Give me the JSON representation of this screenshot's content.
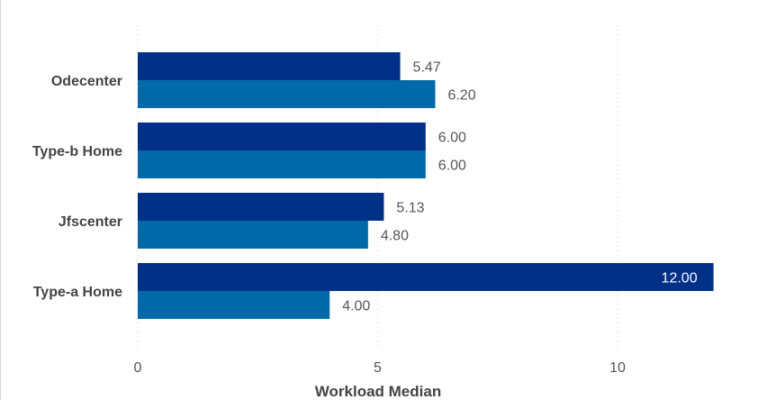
{
  "chart_data": {
    "type": "bar",
    "orientation": "horizontal",
    "categories": [
      "Odecenter",
      "Type-b Home",
      "Jfscenter",
      "Type-a Home"
    ],
    "series": [
      {
        "values": [
          5.47,
          6.0,
          5.13,
          12.0
        ],
        "color": "#003087"
      },
      {
        "values": [
          6.2,
          6.0,
          4.8,
          4.0
        ],
        "color": "#0069a8"
      }
    ],
    "value_labels": [
      [
        "5.47",
        "6.00",
        "5.13",
        "12.00"
      ],
      [
        "6.20",
        "6.00",
        "4.80",
        "4.00"
      ]
    ],
    "xlabel": "Workload Median",
    "ylabel": "",
    "xlim": [
      0,
      12.6
    ],
    "xticks": [
      0,
      5,
      10
    ],
    "xtick_labels": [
      "0",
      "5",
      "10"
    ],
    "grid": "vertical dotted",
    "legend": "none"
  }
}
